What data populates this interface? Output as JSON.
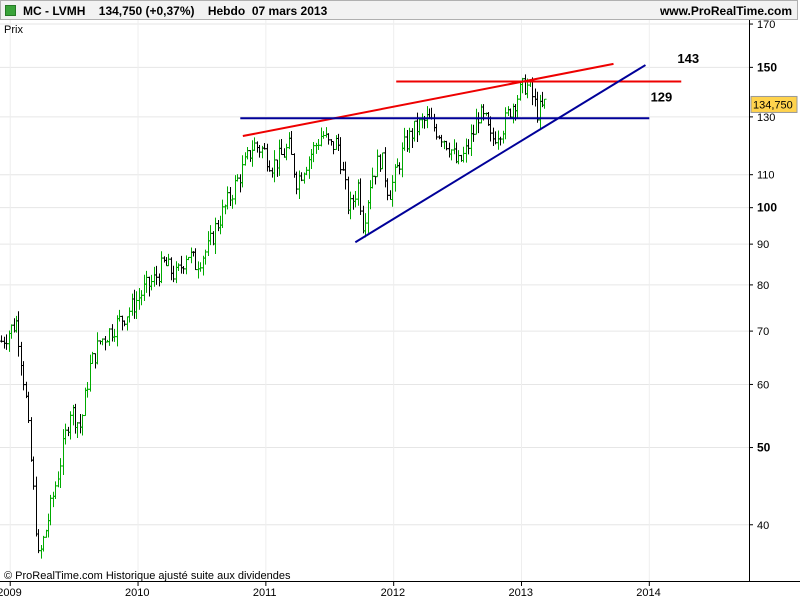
{
  "header": {
    "title": "MC - LVMH    134,750 (+0,37%)    Hebdo  07 mars 2013",
    "url": "www.ProRealTime.com"
  },
  "panel_label": "Prix",
  "footer_note": "© ProRealTime.com  Historique ajusté suite aux dividendes",
  "colors": {
    "up_bar": "#00aa00",
    "down_bar": "#000000",
    "support_trend": "#000099",
    "resistance_trend": "#ee0000",
    "price_tag_bg": "#ffd34d"
  },
  "chart_data": {
    "type": "ohlc",
    "title": "MC - LVMH",
    "interval": "Hebdo",
    "date_label": "07 mars 2013",
    "last_price": "134,750",
    "change": "+0,37%",
    "y_scale": "log",
    "ylim": [
      34,
      172
    ],
    "xlim": [
      2008.92,
      2014.78
    ],
    "x_ticks": [
      "2009",
      "2010",
      "2011",
      "2012",
      "2013",
      "2014"
    ],
    "y_ticks": [
      {
        "value": 170,
        "label": "170",
        "major": false
      },
      {
        "value": 150,
        "label": "150",
        "major": true
      },
      {
        "value": 130,
        "label": "130",
        "major": false
      },
      {
        "value": 110,
        "label": "110",
        "major": false
      },
      {
        "value": 100,
        "label": "100",
        "major": true
      },
      {
        "value": 90,
        "label": "90",
        "major": false
      },
      {
        "value": 80,
        "label": "80",
        "major": false
      },
      {
        "value": 70,
        "label": "70",
        "major": false
      },
      {
        "value": 60,
        "label": "60",
        "major": false
      },
      {
        "value": 50,
        "label": "50",
        "major": true
      },
      {
        "value": 40,
        "label": "40",
        "major": false
      }
    ],
    "price_path": [
      [
        2008.93,
        68
      ],
      [
        2009.05,
        72
      ],
      [
        2009.12,
        58
      ],
      [
        2009.18,
        44
      ],
      [
        2009.22,
        36
      ],
      [
        2009.3,
        41
      ],
      [
        2009.38,
        47
      ],
      [
        2009.47,
        56
      ],
      [
        2009.55,
        53
      ],
      [
        2009.62,
        63
      ],
      [
        2009.7,
        68
      ],
      [
        2009.78,
        70
      ],
      [
        2009.85,
        72
      ],
      [
        2009.95,
        75
      ],
      [
        2010.05,
        79
      ],
      [
        2010.12,
        81
      ],
      [
        2010.2,
        85
      ],
      [
        2010.3,
        82
      ],
      [
        2010.38,
        88
      ],
      [
        2010.45,
        85
      ],
      [
        2010.55,
        89
      ],
      [
        2010.6,
        94
      ],
      [
        2010.68,
        100
      ],
      [
        2010.75,
        106
      ],
      [
        2010.82,
        112
      ],
      [
        2010.9,
        120
      ],
      [
        2010.98,
        118
      ],
      [
        2011.05,
        113
      ],
      [
        2011.12,
        116
      ],
      [
        2011.18,
        119
      ],
      [
        2011.24,
        108
      ],
      [
        2011.3,
        113
      ],
      [
        2011.38,
        119
      ],
      [
        2011.44,
        124
      ],
      [
        2011.5,
        119
      ],
      [
        2011.56,
        121
      ],
      [
        2011.6,
        111
      ],
      [
        2011.65,
        99
      ],
      [
        2011.72,
        107
      ],
      [
        2011.76,
        95
      ],
      [
        2011.82,
        109
      ],
      [
        2011.9,
        116
      ],
      [
        2011.96,
        104
      ],
      [
        2012.02,
        111
      ],
      [
        2012.08,
        119
      ],
      [
        2012.14,
        124
      ],
      [
        2012.2,
        127
      ],
      [
        2012.26,
        129
      ],
      [
        2012.32,
        126
      ],
      [
        2012.38,
        123
      ],
      [
        2012.44,
        119
      ],
      [
        2012.5,
        113
      ],
      [
        2012.56,
        117
      ],
      [
        2012.62,
        124
      ],
      [
        2012.66,
        131
      ],
      [
        2012.72,
        128
      ],
      [
        2012.76,
        121
      ],
      [
        2012.8,
        124
      ],
      [
        2012.86,
        127
      ],
      [
        2012.92,
        134
      ],
      [
        2012.98,
        139
      ],
      [
        2013.03,
        143
      ],
      [
        2013.07,
        140
      ],
      [
        2013.12,
        132
      ],
      [
        2013.16,
        133
      ],
      [
        2013.18,
        134.75
      ]
    ],
    "trend_lines": [
      {
        "name": "resistance-trendline",
        "color": "#ee0000",
        "from": [
          2010.82,
          123
        ],
        "to": [
          2013.72,
          151.5
        ]
      },
      {
        "name": "level-143-line",
        "color": "#ee0000",
        "from": [
          2012.02,
          144
        ],
        "to": [
          2014.25,
          144
        ]
      },
      {
        "name": "level-129-line",
        "color": "#000099",
        "from": [
          2010.8,
          129.5
        ],
        "to": [
          2014.0,
          129.5
        ]
      },
      {
        "name": "support-trendline",
        "color": "#000099",
        "from": [
          2011.7,
          90.5
        ],
        "to": [
          2013.97,
          151
        ]
      }
    ],
    "annotations": [
      {
        "name": "label-143",
        "text": "143",
        "x": 2014.22,
        "y": 152
      },
      {
        "name": "label-129",
        "text": "129",
        "x": 2014.01,
        "y": 136
      }
    ]
  }
}
